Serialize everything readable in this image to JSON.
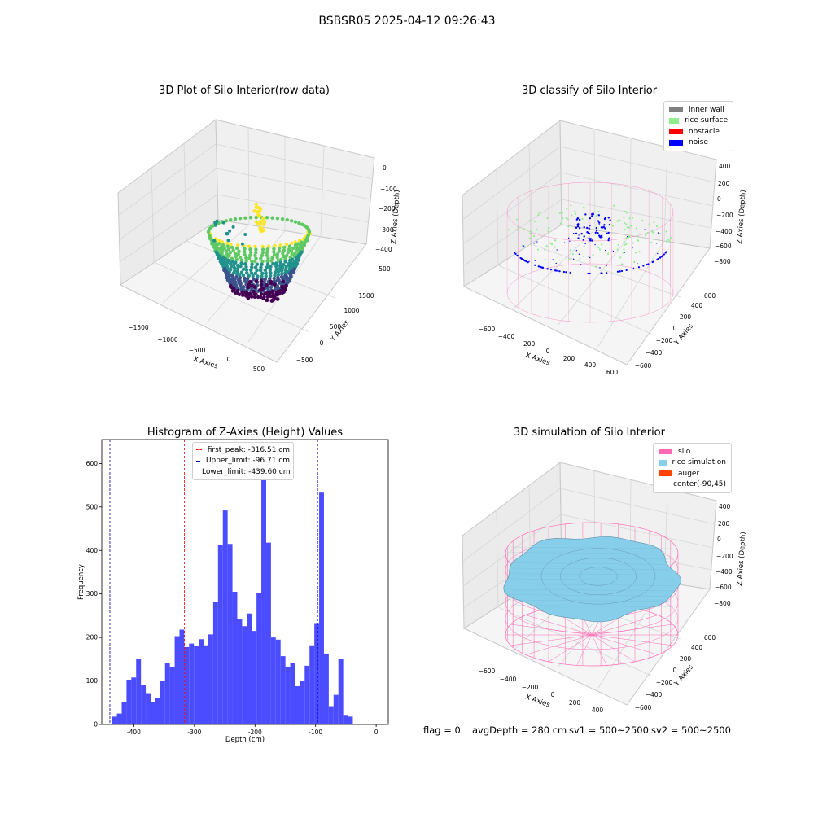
{
  "figure_title": "BSBSR05 2025-04-12 09:26:43",
  "footer": {
    "flag": "flag = 0",
    "avg_depth": "avgDepth = 280 cm",
    "sv1": "sv1 = 500~2500",
    "sv2": "sv2 = 500~2500"
  },
  "chart_data": [
    {
      "id": "raw",
      "type": "scatter",
      "title": "3D Plot of Silo Interior(row data)",
      "xlabel": "X Axies",
      "ylabel": "Y Axies",
      "zlabel": "Z Axies (Depth)",
      "x_ticks": [
        "−1500",
        "−1000",
        "−500",
        "0",
        "500"
      ],
      "y_ticks": [
        "−500",
        "0",
        "500",
        "1000",
        "1500"
      ],
      "z_ticks": [
        "0",
        "−100",
        "−200",
        "−300",
        "−400",
        "−500"
      ],
      "colormap": [
        "#440154",
        "#3b528b",
        "#21918c",
        "#5ec962",
        "#fde725"
      ],
      "grid": true
    },
    {
      "id": "classify",
      "type": "scatter",
      "title": "3D classify of Silo Interior",
      "xlabel": "X Axies",
      "ylabel": "Y Axies",
      "zlabel": "Z Axies (Depth)",
      "x_ticks": [
        "−600",
        "−400",
        "−200",
        "0",
        "200",
        "400",
        "600"
      ],
      "y_ticks": [
        "−600",
        "−400",
        "−200",
        "0",
        "200",
        "400",
        "600"
      ],
      "z_ticks": [
        "400",
        "200",
        "0",
        "−200",
        "−400",
        "−600",
        "−800"
      ],
      "legend": [
        {
          "label": "inner wall",
          "color": "#808080"
        },
        {
          "label": "rice surface",
          "color": "#90ee90"
        },
        {
          "label": "obstacle",
          "color": "#ff0000"
        },
        {
          "label": "noise",
          "color": "#0000ff"
        }
      ],
      "legend_position": "top-right",
      "grid": true
    },
    {
      "id": "hist",
      "type": "bar",
      "title": "Histogram of Z-Axies (Height) Values",
      "xlabel": "Depth (cm)",
      "ylabel": "Frequency",
      "xlim": [
        -453,
        20
      ],
      "ylim": [
        0,
        655
      ],
      "x_ticks": [
        -400,
        -300,
        -200,
        -100,
        0
      ],
      "y_ticks": [
        0,
        100,
        200,
        300,
        400,
        500,
        600
      ],
      "bin_start": -436,
      "bin_width": 7.95,
      "values": [
        18,
        25,
        52,
        103,
        108,
        150,
        90,
        72,
        52,
        60,
        100,
        142,
        132,
        203,
        218,
        178,
        186,
        180,
        196,
        182,
        207,
        282,
        412,
        492,
        415,
        305,
        243,
        226,
        255,
        215,
        302,
        625,
        418,
        200,
        195,
        157,
        133,
        142,
        88,
        100,
        135,
        182,
        233,
        533,
        163,
        42,
        68,
        150,
        22,
        18
      ],
      "bar_color": "#4b4bff",
      "lines": [
        {
          "label": "first_peak: -316.51 cm",
          "x": -316.51,
          "color": "#ff0000"
        },
        {
          "label": "Upper_limit: -96.71 cm",
          "x": -96.71,
          "color": "#0000aa"
        },
        {
          "label": "Lower_limit: -439.60 cm",
          "x": -439.6,
          "color": "#0000aa"
        }
      ],
      "legend_position": "top-center"
    },
    {
      "id": "sim",
      "type": "surface",
      "title": "3D simulation of Silo Interior",
      "xlabel": "X Axies",
      "ylabel": "Y Axies",
      "zlabel": "Z Axies (Depth)",
      "x_ticks": [
        "−600",
        "−400",
        "−200",
        "0",
        "200",
        "400"
      ],
      "y_ticks": [
        "−600",
        "−400",
        "−200",
        "0",
        "200",
        "400",
        "600"
      ],
      "z_ticks": [
        "400",
        "200",
        "0",
        "−200",
        "−400",
        "−600",
        "−800"
      ],
      "legend": [
        {
          "label": "silo",
          "color": "#ff69b4"
        },
        {
          "label": "rice simulation",
          "color": "#87ceeb"
        },
        {
          "label": "auger",
          "color": "#ff4500"
        },
        {
          "label": "center(-90,45)",
          "color": "none"
        }
      ],
      "legend_position": "top-right",
      "grid": true
    }
  ]
}
